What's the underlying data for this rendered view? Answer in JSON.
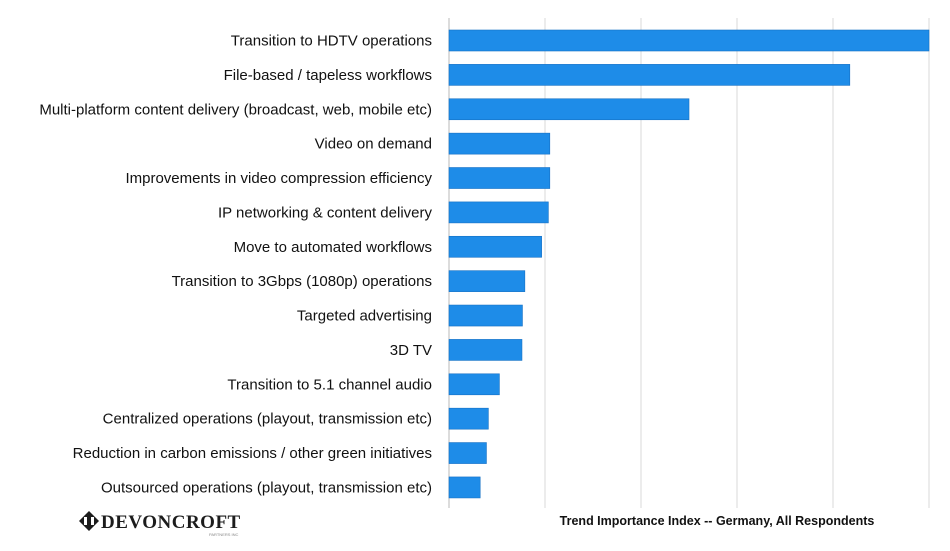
{
  "chart_data": {
    "type": "bar",
    "orientation": "horizontal",
    "title": "",
    "xlabel": "Trend Importance Index -- Germany, All Respondents",
    "ylabel": "",
    "xlim": [
      0,
      100
    ],
    "grid": true,
    "tick_labels_visible": false,
    "categories": [
      "Transition to HDTV operations",
      "File-based  / tapeless workflows",
      "Multi-platform content delivery (broadcast, web, mobile etc)",
      "Video on demand",
      "Improvements in video compression efficiency",
      "IP networking & content delivery",
      "Move to automated workflows",
      "Transition to 3Gbps (1080p) operations",
      "Targeted advertising",
      "3D TV",
      "Transition to 5.1 channel audio",
      "Centralized operations (playout, transmission etc)",
      "Reduction in carbon emissions / other green initiatives",
      "Outsourced operations (playout, transmission etc)"
    ],
    "values": [
      100,
      83.5,
      50,
      21,
      21,
      20.7,
      19.3,
      15.8,
      15.3,
      15.2,
      10.5,
      8.2,
      7.8,
      6.5
    ],
    "bar_color": "#1e8ce8"
  },
  "logo": {
    "text": "DEVONCROFT",
    "subtext": "PARTNERS INC"
  }
}
